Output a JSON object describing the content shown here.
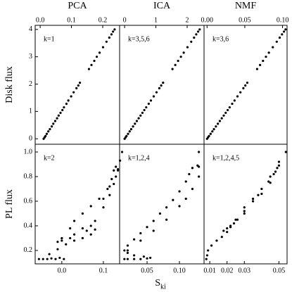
{
  "chart_data": [
    {
      "type": "scatter",
      "title": "PCA",
      "annotation": "k=1",
      "ylabel": "Disk flux",
      "xlim": [
        -0.016,
        0.254
      ],
      "ylim": [
        -0.2,
        4.15
      ],
      "xticks": [
        {
          "value": 0,
          "label": "0.0"
        },
        0.1,
        0.2
      ],
      "yticks": [
        0,
        1,
        2,
        3,
        4
      ],
      "x": [
        0.011,
        0.014,
        0.017,
        0.021,
        0.026,
        0.031,
        0.037,
        0.042,
        0.048,
        0.054,
        0.059,
        0.065,
        0.071,
        0.076,
        0.084,
        0.09,
        0.099,
        0.107,
        0.116,
        0.122,
        0.127,
        0.156,
        0.164,
        0.173,
        0.181,
        0.19,
        0.201,
        0.212,
        0.221,
        0.228,
        0.233,
        0.238
      ],
      "y": [
        0.0,
        0.05,
        0.1,
        0.18,
        0.27,
        0.35,
        0.45,
        0.55,
        0.65,
        0.75,
        0.85,
        0.95,
        1.05,
        1.15,
        1.28,
        1.4,
        1.55,
        1.7,
        1.85,
        1.95,
        2.05,
        2.55,
        2.7,
        2.85,
        3.0,
        3.15,
        3.35,
        3.55,
        3.7,
        3.82,
        3.92,
        4.0
      ]
    },
    {
      "type": "scatter",
      "title": "ICA",
      "annotation": "k=3,5,6",
      "xlim": [
        -0.16,
        2.54
      ],
      "ylim": [
        -0.2,
        4.15
      ],
      "xticks": [
        0,
        1,
        2
      ],
      "x": [
        0,
        0.03,
        0.06,
        0.11,
        0.16,
        0.21,
        0.27,
        0.33,
        0.39,
        0.45,
        0.51,
        0.57,
        0.63,
        0.69,
        0.77,
        0.84,
        0.93,
        1.02,
        1.11,
        1.17,
        1.23,
        1.53,
        1.62,
        1.71,
        1.8,
        1.89,
        2.01,
        2.13,
        2.22,
        2.29,
        2.35,
        2.4
      ],
      "y": [
        0.0,
        0.05,
        0.1,
        0.18,
        0.27,
        0.35,
        0.45,
        0.55,
        0.65,
        0.75,
        0.85,
        0.95,
        1.05,
        1.15,
        1.28,
        1.4,
        1.55,
        1.7,
        1.85,
        1.95,
        2.05,
        2.55,
        2.7,
        2.85,
        3.0,
        3.15,
        3.35,
        3.55,
        3.7,
        3.82,
        3.92,
        4.0
      ]
    },
    {
      "type": "scatter",
      "title": "NMF",
      "annotation": "k=3,6",
      "xlim": [
        -0.004,
        0.106
      ],
      "ylim": [
        -0.2,
        4.15
      ],
      "xticks": [
        {
          "value": 0,
          "label": "0.00"
        },
        0.05,
        {
          "value": 0.1,
          "label": "0.10"
        }
      ],
      "x": [
        0,
        0.0013,
        0.0026,
        0.0047,
        0.007,
        0.0091,
        0.0117,
        0.0143,
        0.0169,
        0.0195,
        0.0221,
        0.0247,
        0.0273,
        0.0299,
        0.0333,
        0.0364,
        0.0403,
        0.0442,
        0.0481,
        0.0507,
        0.0533,
        0.0663,
        0.0702,
        0.0741,
        0.078,
        0.0819,
        0.0871,
        0.0923,
        0.0962,
        0.0993,
        0.1019,
        0.104
      ],
      "y": [
        0.0,
        0.05,
        0.1,
        0.18,
        0.27,
        0.35,
        0.45,
        0.55,
        0.65,
        0.75,
        0.85,
        0.95,
        1.05,
        1.15,
        1.28,
        1.4,
        1.55,
        1.7,
        1.85,
        1.95,
        2.05,
        2.55,
        2.7,
        2.85,
        3.0,
        3.15,
        3.35,
        3.55,
        3.7,
        3.82,
        3.92,
        4.0
      ]
    },
    {
      "type": "scatter",
      "annotation": "k=2",
      "ylabel": "PL flux",
      "xlim": [
        -0.064,
        0.139
      ],
      "ylim": [
        0.091,
        1.063
      ],
      "xticks": [
        {
          "value": 0,
          "label": "0.0"
        },
        0.1
      ],
      "yticks": [
        0.2,
        0.4,
        0.6,
        0.8,
        {
          "value": 1,
          "label": "1.0"
        }
      ],
      "x": [
        -0.055,
        -0.045,
        -0.035,
        -0.025,
        -0.015,
        -0.005,
        0.005,
        -0.03,
        -0.01,
        0.01,
        0.03,
        0.05,
        0.07,
        0.08,
        0.07,
        0.05,
        0.03,
        0.02,
        0.0,
        -0.01,
        0.0,
        0.02,
        0.03,
        0.05,
        0.07,
        0.09,
        0.11,
        0.12,
        0.125,
        0.13,
        0.135,
        0.13,
        0.115,
        0.1,
        0.06,
        0.08,
        0.1,
        0.115,
        0.125,
        0.135,
        0.14,
        0.145
      ],
      "y": [
        0.13,
        0.13,
        0.13,
        0.135,
        0.13,
        0.14,
        0.13,
        0.17,
        0.21,
        0.25,
        0.28,
        0.3,
        0.33,
        0.37,
        0.4,
        0.38,
        0.33,
        0.3,
        0.28,
        0.27,
        0.3,
        0.38,
        0.44,
        0.5,
        0.56,
        0.62,
        0.7,
        0.78,
        0.85,
        0.88,
        0.86,
        0.8,
        0.72,
        0.62,
        0.36,
        0.44,
        0.55,
        0.65,
        0.74,
        0.85,
        0.93,
        1.0
      ]
    },
    {
      "type": "scatter",
      "annotation": "k=1,2,4",
      "xlabel": {
        "main": "S",
        "sub": "ki"
      },
      "xlim": [
        0.0076,
        0.138
      ],
      "ylim": [
        0.091,
        1.063
      ],
      "xticks": [
        0.05,
        {
          "value": 0.1,
          "label": "0.10"
        }
      ],
      "x": [
        0.015,
        0.02,
        0.03,
        0.04,
        0.05,
        0.055,
        0.045,
        0.03,
        0.02,
        0.015,
        0.02,
        0.03,
        0.04,
        0.05,
        0.06,
        0.07,
        0.08,
        0.09,
        0.1,
        0.11,
        0.115,
        0.12,
        0.128,
        0.13,
        0.02,
        0.04,
        0.06,
        0.08,
        0.1,
        0.11,
        0.12,
        0.13,
        0.13
      ],
      "y": [
        0.13,
        0.13,
        0.13,
        0.13,
        0.135,
        0.14,
        0.15,
        0.16,
        0.18,
        0.2,
        0.24,
        0.29,
        0.34,
        0.39,
        0.44,
        0.5,
        0.55,
        0.61,
        0.68,
        0.76,
        0.82,
        0.87,
        0.89,
        0.88,
        0.2,
        0.28,
        0.36,
        0.45,
        0.56,
        0.62,
        0.7,
        0.8,
        1.0
      ]
    },
    {
      "type": "scatter",
      "annotation": "k=1,2,4,5",
      "xlim": [
        0.0067,
        0.0547
      ],
      "ylim": [
        0.091,
        1.063
      ],
      "xticks": [
        0.01,
        0.02,
        0.03,
        0.05
      ],
      "x": [
        0.008,
        0.0085,
        0.009,
        0.011,
        0.014,
        0.017,
        0.02,
        0.022,
        0.025,
        0.03,
        0.035,
        0.04,
        0.045,
        0.047,
        0.049,
        0.05,
        0.048,
        0.044,
        0.038,
        0.03,
        0.024,
        0.02,
        0.018,
        0.022,
        0.026,
        0.03,
        0.035,
        0.04,
        0.045,
        0.05,
        0.054
      ],
      "y": [
        0.13,
        0.16,
        0.2,
        0.24,
        0.28,
        0.31,
        0.35,
        0.4,
        0.45,
        0.52,
        0.6,
        0.66,
        0.75,
        0.82,
        0.87,
        0.89,
        0.84,
        0.76,
        0.65,
        0.5,
        0.42,
        0.38,
        0.36,
        0.39,
        0.45,
        0.55,
        0.62,
        0.7,
        0.8,
        0.92,
        1.0
      ]
    }
  ]
}
